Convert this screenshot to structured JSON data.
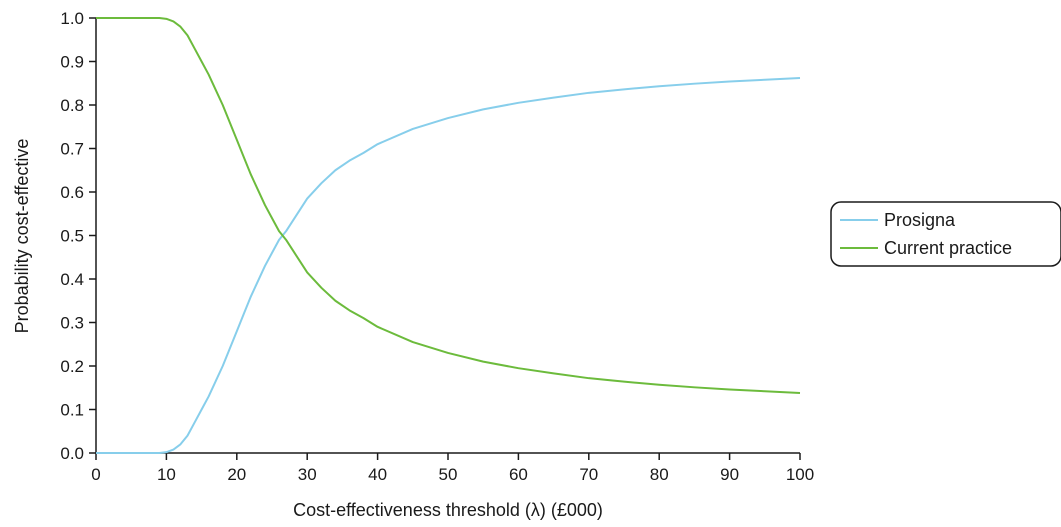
{
  "chart_data": {
    "type": "line",
    "xlabel": "Cost-effectiveness threshold (λ) (£000)",
    "ylabel": "Probability cost-effective",
    "xlim": [
      0,
      100
    ],
    "ylim": [
      0,
      1
    ],
    "xticks": [
      "0",
      "10",
      "20",
      "30",
      "40",
      "50",
      "60",
      "70",
      "80",
      "90",
      "100"
    ],
    "yticks": [
      "0.0",
      "0.1",
      "0.2",
      "0.3",
      "0.4",
      "0.5",
      "0.6",
      "0.7",
      "0.8",
      "0.9",
      "1.0"
    ],
    "grid": false,
    "legend_position": "right",
    "series": [
      {
        "name": "Prosigna",
        "color": "#87ceeb",
        "x": [
          0,
          5,
          9,
          10,
          11,
          12,
          13,
          14,
          15,
          16,
          17,
          18,
          19,
          20,
          21,
          22,
          23,
          24,
          25,
          26,
          27,
          28,
          29,
          30,
          32,
          34,
          36,
          38,
          40,
          45,
          50,
          55,
          60,
          65,
          70,
          75,
          80,
          85,
          90,
          95,
          100
        ],
        "y": [
          0.0,
          0.0,
          0.0,
          0.002,
          0.008,
          0.02,
          0.04,
          0.07,
          0.1,
          0.13,
          0.165,
          0.2,
          0.24,
          0.28,
          0.32,
          0.36,
          0.395,
          0.43,
          0.46,
          0.49,
          0.51,
          0.535,
          0.56,
          0.585,
          0.62,
          0.65,
          0.672,
          0.69,
          0.71,
          0.745,
          0.77,
          0.79,
          0.805,
          0.817,
          0.828,
          0.836,
          0.843,
          0.849,
          0.854,
          0.858,
          0.862
        ]
      },
      {
        "name": "Current practice",
        "color": "#6cbb3c",
        "x": [
          0,
          5,
          9,
          10,
          11,
          12,
          13,
          14,
          15,
          16,
          17,
          18,
          19,
          20,
          21,
          22,
          23,
          24,
          25,
          26,
          27,
          28,
          29,
          30,
          32,
          34,
          36,
          38,
          40,
          45,
          50,
          55,
          60,
          65,
          70,
          75,
          80,
          85,
          90,
          95,
          100
        ],
        "y": [
          1.0,
          1.0,
          1.0,
          0.998,
          0.992,
          0.98,
          0.96,
          0.93,
          0.9,
          0.87,
          0.835,
          0.8,
          0.76,
          0.72,
          0.68,
          0.64,
          0.605,
          0.57,
          0.54,
          0.51,
          0.49,
          0.465,
          0.44,
          0.415,
          0.38,
          0.35,
          0.328,
          0.31,
          0.29,
          0.255,
          0.23,
          0.21,
          0.195,
          0.183,
          0.172,
          0.164,
          0.157,
          0.151,
          0.146,
          0.142,
          0.138
        ]
      }
    ]
  }
}
